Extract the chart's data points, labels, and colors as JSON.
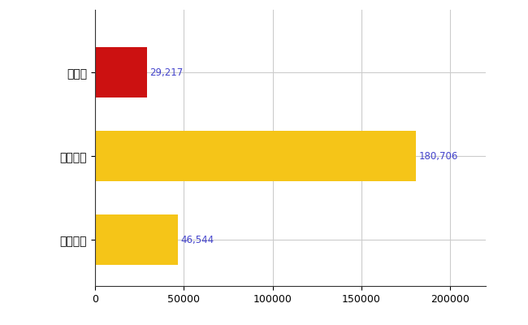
{
  "categories": [
    "全国平均",
    "全国最大",
    "富山県"
  ],
  "values": [
    46544,
    180706,
    29217
  ],
  "bar_colors": [
    "#f5c518",
    "#f5c518",
    "#cc1111"
  ],
  "value_labels": [
    "46,544",
    "180,706",
    "29,217"
  ],
  "xlim": [
    0,
    220000
  ],
  "xticks": [
    0,
    50000,
    100000,
    150000,
    200000
  ],
  "xtick_labels": [
    "0",
    "50000",
    "100000",
    "150000",
    "200000"
  ],
  "label_color": "#4444cc",
  "label_fontsize": 8.5,
  "ytick_fontsize": 10,
  "xtick_fontsize": 9,
  "background_color": "#ffffff",
  "grid_color": "#cccccc",
  "bar_height": 0.6
}
